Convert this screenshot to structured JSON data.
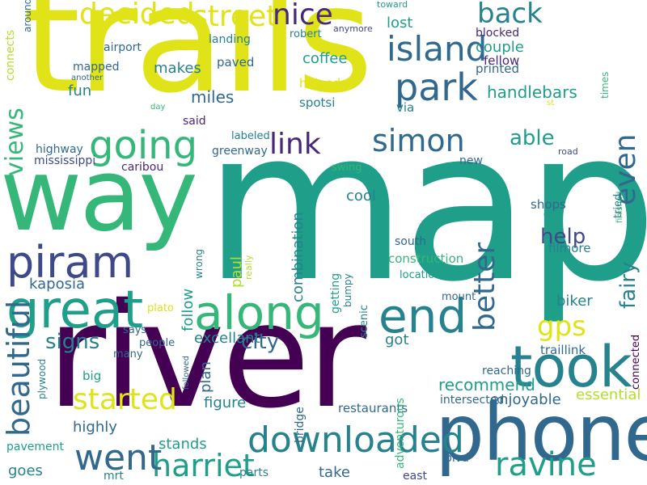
{
  "palette": {
    "yellow": "#dfe318",
    "lime": "#b5de2b",
    "green": "#6ccd5a",
    "mint": "#35b779",
    "teal": "#1f9e89",
    "teal_blue": "#26828e",
    "blue": "#31688e",
    "indigo": "#3e4989",
    "purple": "#482878",
    "dark_purple": "#440154"
  },
  "words": [
    {
      "text": "trails",
      "color": "#dfe318"
    },
    {
      "text": "map",
      "color": "#1f9e89"
    },
    {
      "text": "river",
      "color": "#440154"
    },
    {
      "text": "way",
      "color": "#35b779"
    },
    {
      "text": "phone",
      "color": "#31688e"
    },
    {
      "text": "took",
      "color": "#26828e"
    },
    {
      "text": "great",
      "color": "#1f9e89"
    },
    {
      "text": "along",
      "color": "#35b779"
    },
    {
      "text": "end",
      "color": "#26828e"
    },
    {
      "text": "piram",
      "color": "#3e4989"
    },
    {
      "text": "going",
      "color": "#35b779"
    },
    {
      "text": "park",
      "color": "#31688e"
    },
    {
      "text": "downloaded",
      "color": "#31688e"
    },
    {
      "text": "ravine",
      "color": "#26828e"
    },
    {
      "text": "harriet",
      "color": "#1f9e89"
    },
    {
      "text": "went",
      "color": "#1f9e89"
    },
    {
      "text": "link",
      "color": "#31688e"
    },
    {
      "text": "simon",
      "color": "#482878"
    },
    {
      "text": "decided",
      "color": "#31688e"
    },
    {
      "text": "street",
      "color": "#dfe318"
    },
    {
      "text": "nice",
      "color": "#dfe318"
    },
    {
      "text": "back",
      "color": "#482878"
    },
    {
      "text": "island",
      "color": "#26828e"
    },
    {
      "text": "gps",
      "color": "#31688e"
    },
    {
      "text": "started",
      "color": "#31688e"
    },
    {
      "text": "able",
      "color": "#dfe318"
    },
    {
      "text": "help",
      "color": "#dfe318"
    },
    {
      "text": "signs",
      "color": "#31688e"
    },
    {
      "text": "city",
      "color": "#35b779"
    },
    {
      "text": "kaposia",
      "color": "#1f9e89"
    },
    {
      "text": "miles",
      "color": "#26828e"
    },
    {
      "text": "fun",
      "color": "#3e4989"
    },
    {
      "text": "makes",
      "color": "#26828e"
    },
    {
      "text": "coffee",
      "color": "#31688e"
    },
    {
      "text": "handlebars",
      "color": "#31688e"
    },
    {
      "text": "lost",
      "color": "#31688e"
    },
    {
      "text": "couple",
      "color": "#26828e"
    },
    {
      "text": "mapped",
      "color": "#26828e"
    },
    {
      "text": "paved",
      "color": "#1f9e89"
    },
    {
      "text": "helped",
      "color": "#1f9e89"
    },
    {
      "text": "spotsi",
      "color": "#1f9e89"
    },
    {
      "text": "via",
      "color": "#1f9e89"
    },
    {
      "text": "printed",
      "color": "#b5de2b"
    },
    {
      "text": "fellow",
      "color": "#31688e"
    },
    {
      "text": "blocked",
      "color": "#31688e"
    },
    {
      "text": "airport",
      "color": "#dfe318"
    },
    {
      "text": "landing",
      "color": "#26828e"
    },
    {
      "text": "robert",
      "color": "#26828e"
    },
    {
      "text": "anymore",
      "color": "#31688e"
    },
    {
      "text": "toward",
      "color": "#482878"
    },
    {
      "text": "another",
      "color": "#482878"
    },
    {
      "text": "day",
      "color": "#31688e"
    },
    {
      "text": "st",
      "color": "#26828e"
    },
    {
      "text": "said",
      "color": "#26828e"
    },
    {
      "text": "labeled",
      "color": "#3e4989"
    },
    {
      "text": "greenway",
      "color": "#1f9e89"
    },
    {
      "text": "road",
      "color": "#31688e"
    },
    {
      "text": "highway",
      "color": "#31688e"
    },
    {
      "text": "mississippi",
      "color": "#35b779"
    },
    {
      "text": "caribou",
      "color": "#dfe318"
    },
    {
      "text": "swing",
      "color": "#35b779"
    },
    {
      "text": "new",
      "color": "#482878"
    },
    {
      "text": "cool",
      "color": "#26828e"
    },
    {
      "text": "biker",
      "color": "#31688e"
    },
    {
      "text": "excellant",
      "color": "#3e4989"
    },
    {
      "text": "plato",
      "color": "#31688e"
    },
    {
      "text": "says",
      "color": "#3e4989"
    },
    {
      "text": "people",
      "color": "#482878"
    },
    {
      "text": "many",
      "color": "#35b779"
    },
    {
      "text": "big",
      "color": "#31688e"
    },
    {
      "text": "figure",
      "color": "#26828e"
    },
    {
      "text": "got",
      "color": "#31688e"
    },
    {
      "text": "traillink",
      "color": "#1f9e89"
    },
    {
      "text": "recommend",
      "color": "#26828e"
    },
    {
      "text": "reaching",
      "color": "#b5de2b"
    },
    {
      "text": "enjoyable",
      "color": "#b5de2b"
    },
    {
      "text": "essential",
      "color": "#26828e"
    },
    {
      "text": "intersected",
      "color": "#1f9e89"
    },
    {
      "text": "restaurants",
      "color": "#26828e"
    },
    {
      "text": "highly",
      "color": "#26828e"
    },
    {
      "text": "stands",
      "color": "#31688e"
    },
    {
      "text": "pavement",
      "color": "#1f9e89"
    },
    {
      "text": "goes",
      "color": "#35b779"
    },
    {
      "text": "mrt",
      "color": "#26828e"
    },
    {
      "text": "parts",
      "color": "#26828e"
    },
    {
      "text": "take",
      "color": "#31688e"
    },
    {
      "text": "east",
      "color": "#1f9e89"
    },
    {
      "text": "blvd",
      "color": "#35b779"
    },
    {
      "text": "south",
      "color": "#31688e"
    },
    {
      "text": "location",
      "color": "#26828e"
    },
    {
      "text": "construction",
      "color": "#440154"
    },
    {
      "text": "mount",
      "color": "#26828e"
    },
    {
      "text": "shops",
      "color": "#dfe318"
    },
    {
      "text": "car",
      "color": "#31688e"
    },
    {
      "text": "filmore",
      "color": "#31688e"
    },
    {
      "text": "even",
      "color": "#31688e"
    },
    {
      "text": "better",
      "color": "#26828e"
    },
    {
      "text": "beautiful",
      "color": "#1f9e89"
    },
    {
      "text": "views",
      "color": "#31688e"
    },
    {
      "text": "fairy",
      "color": "#26828e"
    },
    {
      "text": "connects",
      "color": "#26828e"
    },
    {
      "text": "around",
      "color": "#31688e"
    },
    {
      "text": "times",
      "color": "#1f9e89"
    },
    {
      "text": "plan",
      "color": "#31688e"
    },
    {
      "text": "follow",
      "color": "#31688e"
    },
    {
      "text": "wrong",
      "color": "#b5de2b"
    },
    {
      "text": "paul",
      "color": "#31688e"
    },
    {
      "text": "really",
      "color": "#31688e"
    },
    {
      "text": "combination",
      "color": "#35b779"
    },
    {
      "text": "getting",
      "color": "#31688e"
    },
    {
      "text": "bumpy",
      "color": "#31688e"
    },
    {
      "text": "scenic",
      "color": "#1f9e89"
    },
    {
      "text": "finished",
      "color": "#1f9e89"
    },
    {
      "text": "tried",
      "color": "#26828e"
    },
    {
      "text": "connected",
      "color": "#26828e"
    },
    {
      "text": "plywood",
      "color": "#26828e"
    },
    {
      "text": "followed",
      "color": "#31688e"
    },
    {
      "text": "adventurous",
      "color": "#3e4989"
    },
    {
      "text": "bridge",
      "color": "#31688e"
    }
  ]
}
